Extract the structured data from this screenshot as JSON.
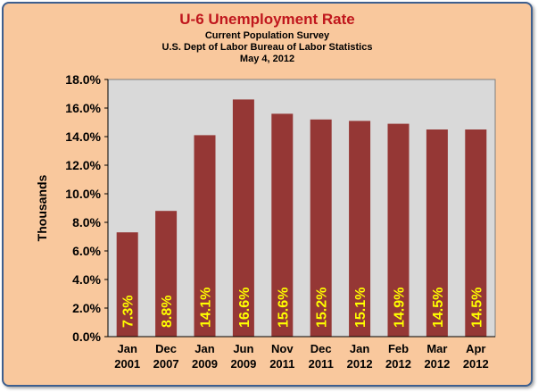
{
  "title": "U-6 Unemployment Rate",
  "subtitles": [
    "Current Population Survey",
    "U.S. Dept of Labor Bureau of Labor Statistics",
    "May 4, 2012"
  ],
  "colors": {
    "background": "#f9c89d",
    "plot_area": "#d9d9d9",
    "bar": "#953735",
    "bar_label": "#ffff00",
    "title": "#c0171d",
    "border": "#3e5f8e"
  },
  "chart_data": {
    "type": "bar",
    "title": "U-6 Unemployment Rate",
    "ylabel": "Thousands",
    "xlabel": "",
    "categories": [
      [
        "Jan",
        "2001"
      ],
      [
        "Dec",
        "2007"
      ],
      [
        "Jan",
        "2009"
      ],
      [
        "Jun",
        "2009"
      ],
      [
        "Nov",
        "2011"
      ],
      [
        "Dec",
        "2011"
      ],
      [
        "Jan",
        "2012"
      ],
      [
        "Feb",
        "2012"
      ],
      [
        "Mar",
        "2012"
      ],
      [
        "Apr",
        "2012"
      ]
    ],
    "values": [
      7.3,
      8.8,
      14.1,
      16.6,
      15.6,
      15.2,
      15.1,
      14.9,
      14.5,
      14.5
    ],
    "data_labels": [
      "7.3%",
      "8.8%",
      "14.1%",
      "16.6%",
      "15.6%",
      "15.2%",
      "15.1%",
      "14.9%",
      "14.5%",
      "14.5%"
    ],
    "ylim": [
      0,
      18
    ],
    "yticks": [
      0,
      2,
      4,
      6,
      8,
      10,
      12,
      14,
      16,
      18
    ],
    "ytick_labels": [
      "0.0%",
      "2.0%",
      "4.0%",
      "6.0%",
      "8.0%",
      "10.0%",
      "12.0%",
      "14.0%",
      "16.0%",
      "18.0%"
    ],
    "grid": false,
    "legend": "none"
  }
}
